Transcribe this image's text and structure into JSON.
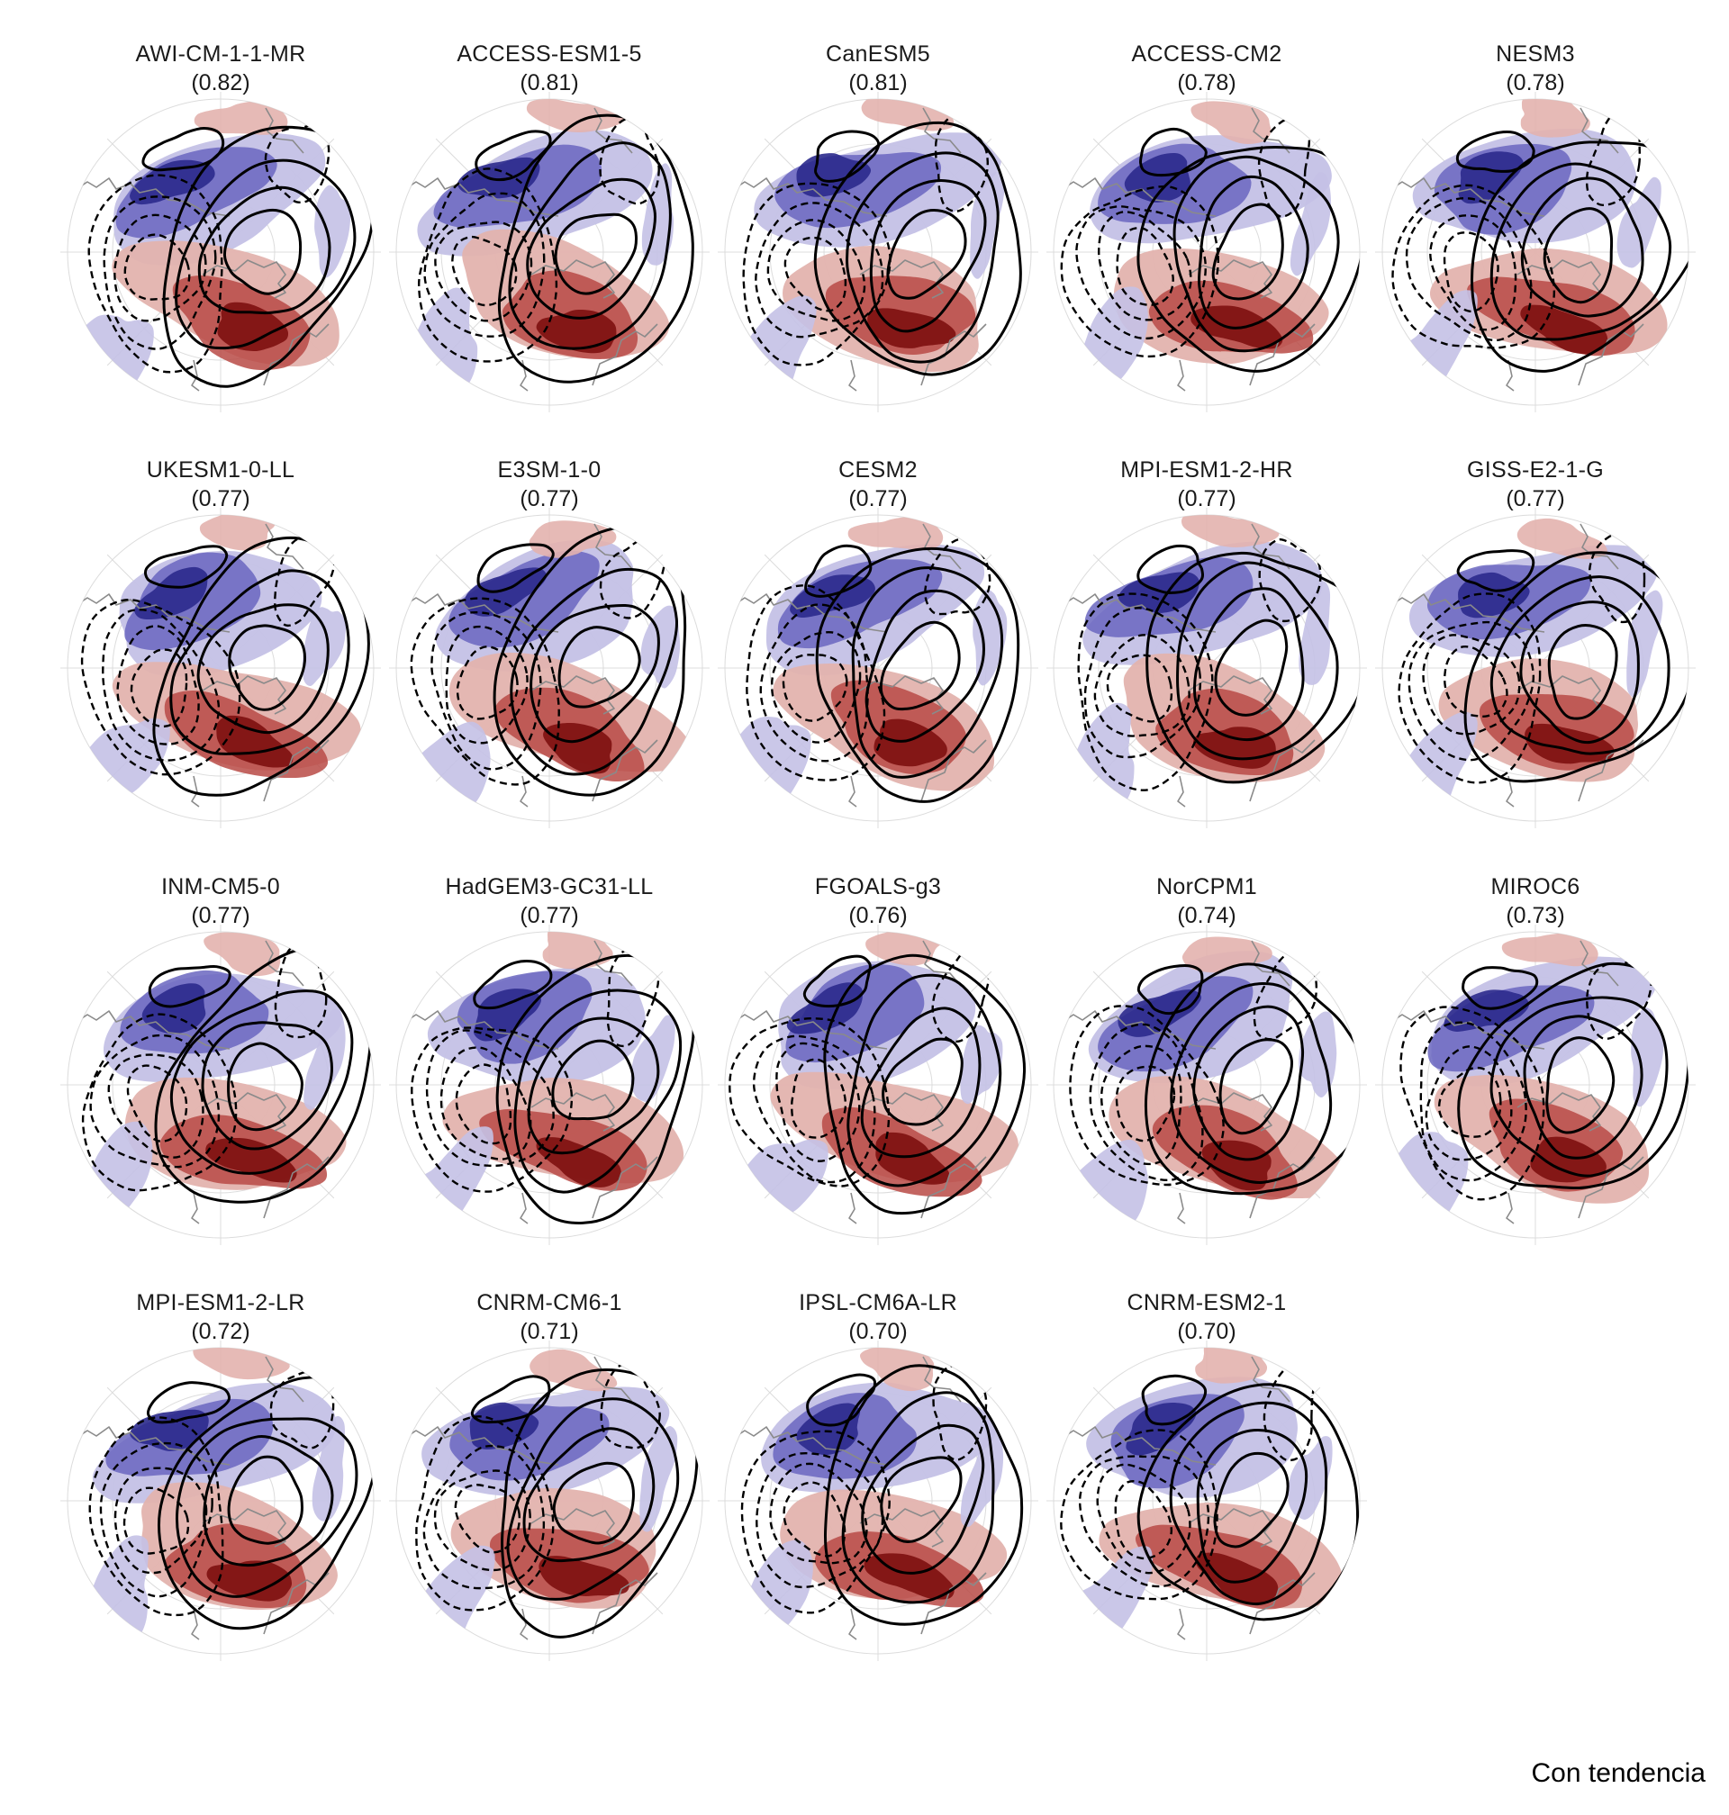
{
  "panels": [
    {
      "model": "AWI-CM-1-1-MR",
      "score": "(0.82)"
    },
    {
      "model": "ACCESS-ESM1-5",
      "score": "(0.81)"
    },
    {
      "model": "CanESM5",
      "score": "(0.81)"
    },
    {
      "model": "ACCESS-CM2",
      "score": "(0.78)"
    },
    {
      "model": "NESM3",
      "score": "(0.78)"
    },
    {
      "model": "UKESM1-0-LL",
      "score": "(0.77)"
    },
    {
      "model": "E3SM-1-0",
      "score": "(0.77)"
    },
    {
      "model": "CESM2",
      "score": "(0.77)"
    },
    {
      "model": "MPI-ESM1-2-HR",
      "score": "(0.77)"
    },
    {
      "model": "GISS-E2-1-G",
      "score": "(0.77)"
    },
    {
      "model": "INM-CM5-0",
      "score": "(0.77)"
    },
    {
      "model": "HadGEM3-GC31-LL",
      "score": "(0.77)"
    },
    {
      "model": "FGOALS-g3",
      "score": "(0.76)"
    },
    {
      "model": "NorCPM1",
      "score": "(0.74)"
    },
    {
      "model": "MIROC6",
      "score": "(0.73)"
    },
    {
      "model": "MPI-ESM1-2-LR",
      "score": "(0.72)"
    },
    {
      "model": "CNRM-CM6-1",
      "score": "(0.71)"
    },
    {
      "model": "IPSL-CM6A-LR",
      "score": "(0.70)"
    },
    {
      "model": "CNRM-ESM2-1",
      "score": "(0.70)"
    }
  ],
  "footer": {
    "label": "Con tendencia"
  },
  "colors": {
    "negative_strong": "#2b2a8c",
    "negative_mid": "#6a66c0",
    "negative_light": "#c4c1e6",
    "positive_strong": "#7d1010",
    "positive_mid": "#b84a45",
    "positive_light": "#e3b3ae",
    "contour": "#000000",
    "coastline": "#8a8a8a",
    "graticule": "#dcdcdc"
  }
}
